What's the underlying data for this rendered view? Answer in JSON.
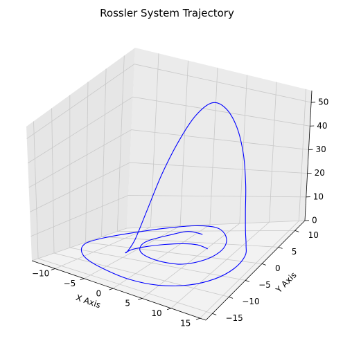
{
  "chart_data": {
    "type": "line",
    "projection": "3d",
    "title": "Rossler System Trajectory",
    "xlabel": "X Axis",
    "ylabel": "Y Axis",
    "zlabel": "",
    "xlim": [
      -14,
      16
    ],
    "ylim": [
      -17,
      13
    ],
    "zlim": [
      0,
      55
    ],
    "xticks": [
      -10,
      -5,
      0,
      5,
      10,
      15
    ],
    "yticks": [
      -15,
      -10,
      -5,
      0,
      5,
      10
    ],
    "zticks": [
      0,
      10,
      20,
      30,
      40,
      50
    ],
    "grid": true,
    "pane_color": "#f2f2f2",
    "series": [
      {
        "color": "#0000ff",
        "points": [
          [
            1.8,
            7.4,
            0.9
          ],
          [
            -1.2,
            8.4,
            1.0
          ],
          [
            -3.3,
            6.3,
            1.0
          ],
          [
            -4.8,
            3.2,
            1.1
          ],
          [
            -4.9,
            0.8,
            1.0
          ],
          [
            -3.7,
            -1.9,
            0.8
          ],
          [
            -1.5,
            -3.7,
            0.7
          ],
          [
            1.6,
            -4.6,
            0.7
          ],
          [
            4.7,
            -4.1,
            0.6
          ],
          [
            7.1,
            -1.7,
            0.7
          ],
          [
            8.0,
            1.3,
            0.8
          ],
          [
            7.5,
            4.3,
            1.0
          ],
          [
            5.4,
            7.7,
            1.0
          ],
          [
            2.5,
            10.2,
            1.1
          ],
          [
            -1.6,
            11.2,
            1.0
          ],
          [
            -6.1,
            10.1,
            0.9
          ],
          [
            -10.0,
            7.1,
            0.8
          ],
          [
            -12.5,
            2.8,
            0.7
          ],
          [
            -13.0,
            -1.6,
            0.7
          ],
          [
            -11.6,
            -5.8,
            0.6
          ],
          [
            -8.8,
            -9.4,
            0.5
          ],
          [
            -4.7,
            -11.7,
            0.5
          ],
          [
            0.4,
            -12.9,
            0.5
          ],
          [
            5.1,
            -12.2,
            0.5
          ],
          [
            9.1,
            -9.9,
            0.6
          ],
          [
            11.7,
            -6.7,
            0.7
          ],
          [
            12.9,
            -3.0,
            0.8
          ],
          [
            12.6,
            0.9,
            1.0
          ],
          [
            11.8,
            2.6,
            3.0
          ],
          [
            11.4,
            3.0,
            8.0
          ],
          [
            11.0,
            3.5,
            15.0
          ],
          [
            10.5,
            4.2,
            24.0
          ],
          [
            9.4,
            5.2,
            34.0
          ],
          [
            7.6,
            6.1,
            43.0
          ],
          [
            5.5,
            6.3,
            49.0
          ],
          [
            3.7,
            5.4,
            51.0
          ],
          [
            2.2,
            3.3,
            47.5
          ],
          [
            1.0,
            0.6,
            40.0
          ],
          [
            -0.1,
            -2.2,
            30.0
          ],
          [
            -1.3,
            -4.4,
            18.0
          ],
          [
            -2.6,
            -5.5,
            8.0
          ],
          [
            -3.9,
            -5.5,
            3.0
          ],
          [
            -5.0,
            -4.0,
            1.2
          ],
          [
            -5.1,
            -1.7,
            0.8
          ],
          [
            -3.9,
            0.6,
            0.7
          ],
          [
            -1.8,
            2.3,
            0.7
          ],
          [
            0.8,
            3.2,
            0.8
          ],
          [
            3.3,
            3.1,
            0.9
          ],
          [
            5.7,
            1.9,
            1.0
          ]
        ]
      }
    ]
  }
}
